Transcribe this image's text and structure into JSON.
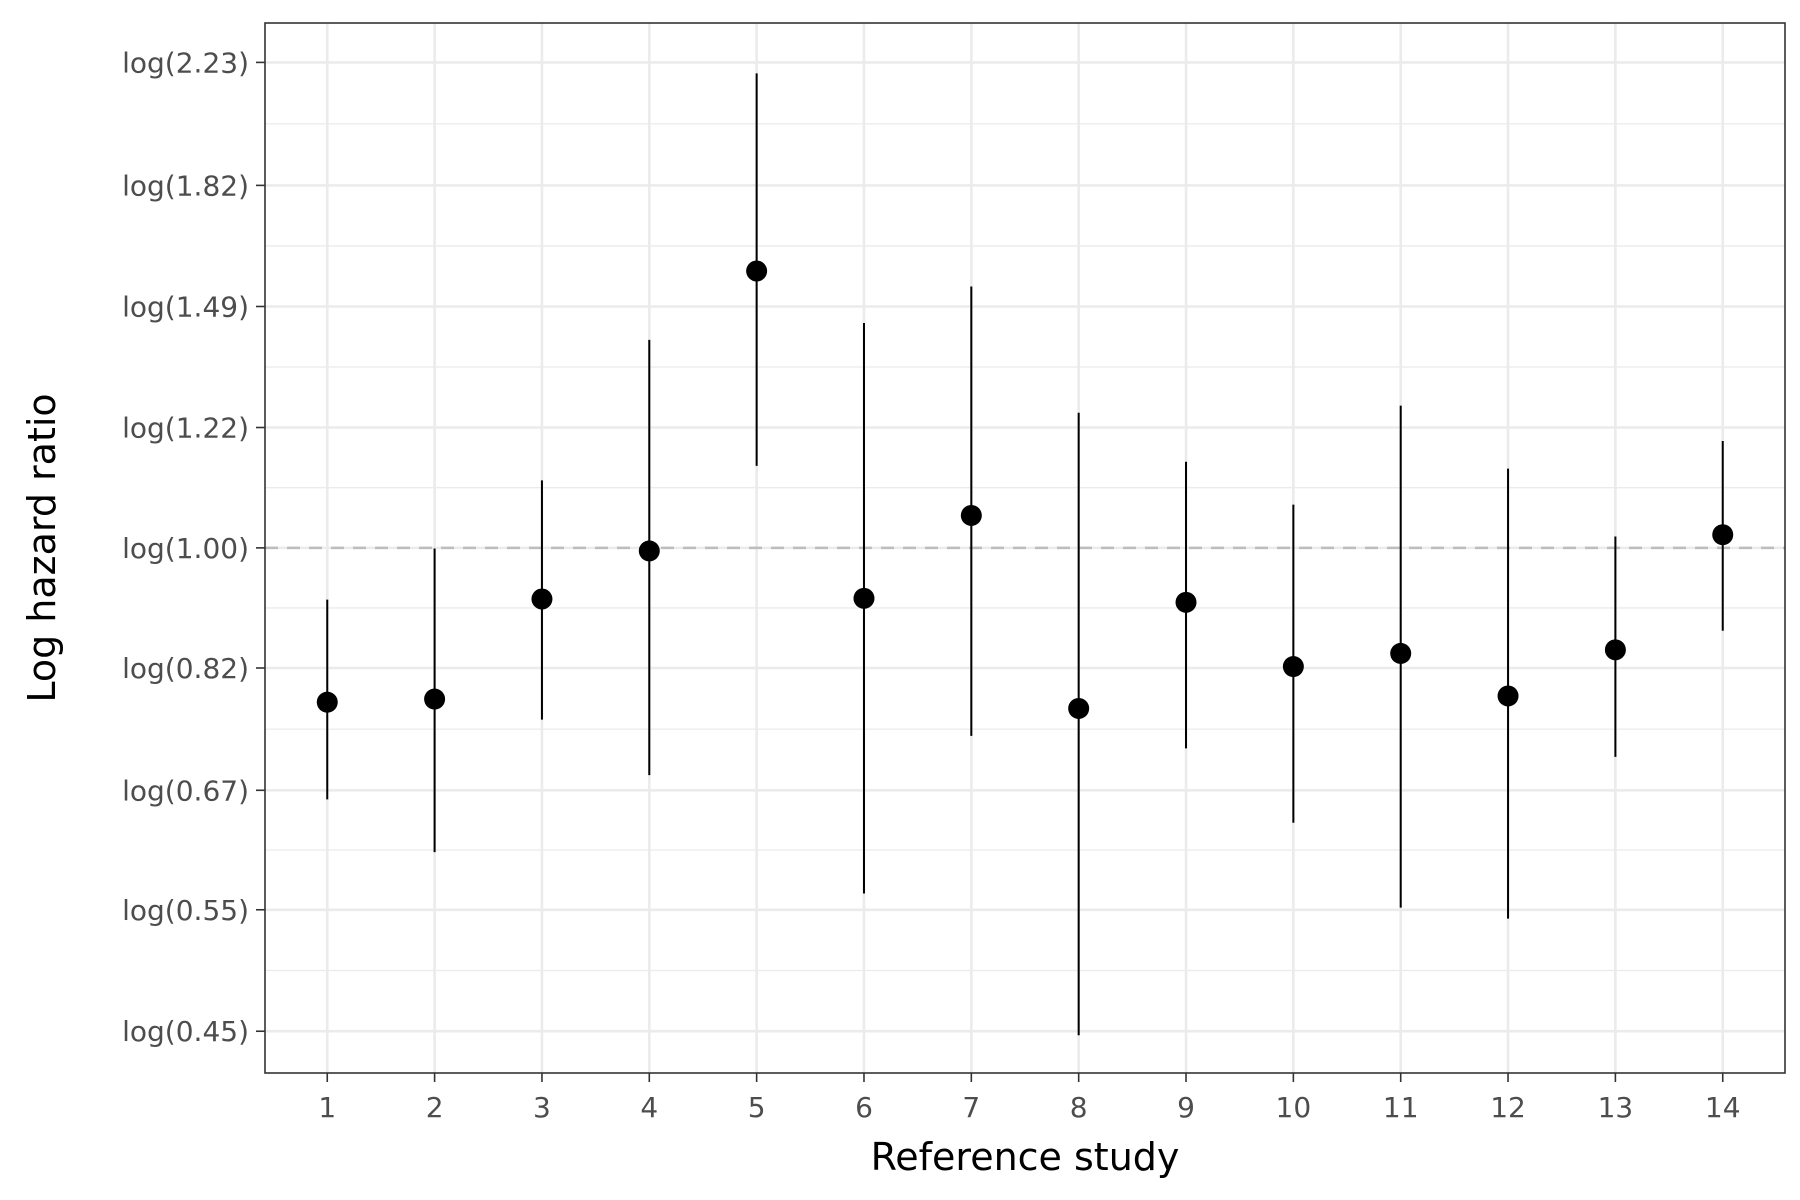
{
  "chart_data": {
    "type": "scatter",
    "title": "",
    "xlabel": "Reference study",
    "ylabel": "Log hazard ratio",
    "x_ticks": [
      "1",
      "2",
      "3",
      "4",
      "5",
      "6",
      "7",
      "8",
      "9",
      "10",
      "11",
      "12",
      "13",
      "14"
    ],
    "y_ticks": [
      {
        "value": 0.45,
        "label": "log(0.45)"
      },
      {
        "value": 0.55,
        "label": "log(0.55)"
      },
      {
        "value": 0.67,
        "label": "log(0.67)"
      },
      {
        "value": 0.82,
        "label": "log(0.82)"
      },
      {
        "value": 1.0,
        "label": "log(1.00)"
      },
      {
        "value": 1.22,
        "label": "log(1.22)"
      },
      {
        "value": 1.49,
        "label": "log(1.49)"
      },
      {
        "value": 1.82,
        "label": "log(1.82)"
      },
      {
        "value": 2.23,
        "label": "log(2.23)"
      }
    ],
    "y_scale": "log",
    "ylim": [
      0.42,
      2.38
    ],
    "xlim": [
      0.42,
      14.58
    ],
    "reference_line": {
      "value": 1.0,
      "style": "dashed",
      "color": "#bdbdbd"
    },
    "grid": true,
    "colors": {
      "points": "#000000",
      "grid": "#ebebeb",
      "border": "#333333"
    },
    "points": [
      {
        "x": 1,
        "y": 0.775,
        "lower": 0.66,
        "upper": 0.918
      },
      {
        "x": 2,
        "y": 0.779,
        "lower": 0.605,
        "upper": 0.999
      },
      {
        "x": 3,
        "y": 0.919,
        "lower": 0.753,
        "upper": 1.118
      },
      {
        "x": 4,
        "y": 0.995,
        "lower": 0.687,
        "upper": 1.41
      },
      {
        "x": 5,
        "y": 1.58,
        "lower": 1.145,
        "upper": 2.19
      },
      {
        "x": 6,
        "y": 0.92,
        "lower": 0.565,
        "upper": 1.45
      },
      {
        "x": 7,
        "y": 1.055,
        "lower": 0.733,
        "upper": 1.54
      },
      {
        "x": 8,
        "y": 0.767,
        "lower": 0.447,
        "upper": 1.25
      },
      {
        "x": 9,
        "y": 0.914,
        "lower": 0.718,
        "upper": 1.153
      },
      {
        "x": 10,
        "y": 0.822,
        "lower": 0.635,
        "upper": 1.074
      },
      {
        "x": 11,
        "y": 0.84,
        "lower": 0.552,
        "upper": 1.265
      },
      {
        "x": 12,
        "y": 0.783,
        "lower": 0.542,
        "upper": 1.14
      },
      {
        "x": 13,
        "y": 0.845,
        "lower": 0.708,
        "upper": 1.019
      },
      {
        "x": 14,
        "y": 1.022,
        "lower": 0.872,
        "upper": 1.193
      }
    ]
  }
}
